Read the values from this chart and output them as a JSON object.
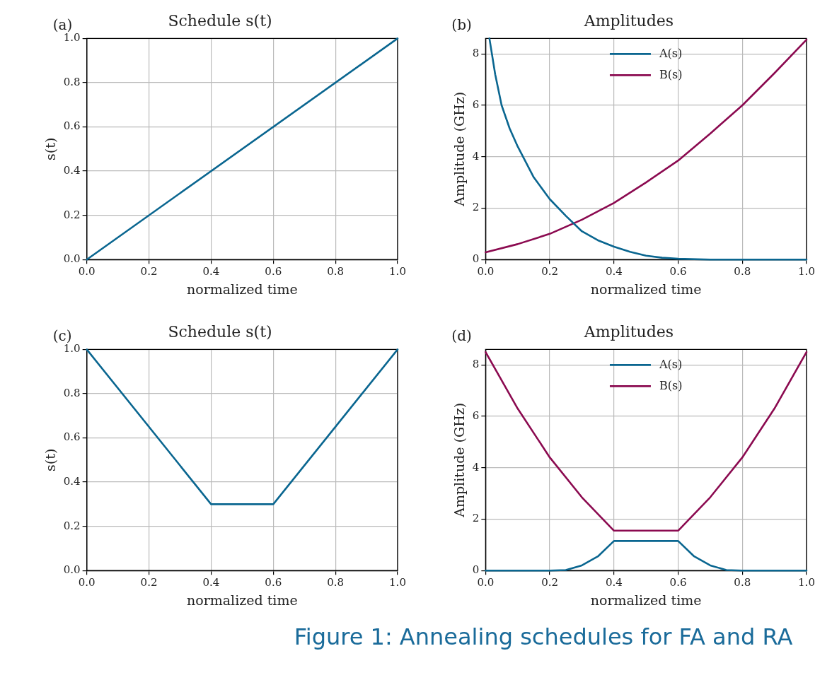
{
  "chart_data": [
    {
      "type": "line",
      "title": "Schedule s(t)",
      "xlabel": "normalized time",
      "ylabel": "s(t)",
      "annotations": [
        "(a)"
      ],
      "xlim": [
        0,
        1
      ],
      "ylim": [
        0,
        1
      ],
      "xticks": [
        {
          "value": 0,
          "label": "0.0"
        },
        {
          "value": 0.2,
          "label": "0.2"
        },
        {
          "value": 0.4,
          "label": "0.4"
        },
        {
          "value": 0.6,
          "label": "0.6"
        },
        {
          "value": 0.8,
          "label": "0.8"
        },
        {
          "value": 1,
          "label": "1.0"
        }
      ],
      "yticks": [
        {
          "value": 0,
          "label": "0.0"
        },
        {
          "value": 0.2,
          "label": "0.2"
        },
        {
          "value": 0.4,
          "label": "0.4"
        },
        {
          "value": 0.6,
          "label": "0.6"
        },
        {
          "value": 0.8,
          "label": "0.8"
        },
        {
          "value": 1,
          "label": "1.0"
        }
      ],
      "grid": true,
      "legend": false,
      "series": [
        {
          "color": "#0a6690",
          "x": [
            0,
            1
          ],
          "values": [
            0,
            1
          ]
        }
      ]
    },
    {
      "type": "line",
      "title": "Amplitudes",
      "xlabel": "normalized time",
      "ylabel": "Amplitude (GHz)",
      "annotations": [
        "(b)"
      ],
      "xlim": [
        0,
        1
      ],
      "ylim": [
        0,
        8.6
      ],
      "xticks": [
        {
          "value": 0,
          "label": "0.0"
        },
        {
          "value": 0.2,
          "label": "0.2"
        },
        {
          "value": 0.4,
          "label": "0.4"
        },
        {
          "value": 0.6,
          "label": "0.6"
        },
        {
          "value": 0.8,
          "label": "0.8"
        },
        {
          "value": 1,
          "label": "1.0"
        }
      ],
      "yticks": [
        0,
        2,
        4,
        6,
        8
      ],
      "grid": true,
      "legend": "top",
      "series": [
        {
          "name": "A(s)",
          "color": "#0a6690",
          "x": [
            0.012,
            0.03,
            0.05,
            0.075,
            0.1,
            0.15,
            0.2,
            0.25,
            0.3,
            0.35,
            0.4,
            0.45,
            0.5,
            0.55,
            0.6,
            0.7,
            0.8,
            0.9,
            1.0
          ],
          "values": [
            8.6,
            7.2,
            6.0,
            5.1,
            4.4,
            3.2,
            2.35,
            1.7,
            1.1,
            0.75,
            0.5,
            0.3,
            0.15,
            0.07,
            0.03,
            0,
            0,
            0,
            0
          ]
        },
        {
          "name": "B(s)",
          "color": "#8b0a50",
          "x": [
            0,
            0.1,
            0.2,
            0.3,
            0.4,
            0.5,
            0.6,
            0.7,
            0.8,
            0.9,
            1.0
          ],
          "values": [
            0.28,
            0.6,
            1.0,
            1.55,
            2.2,
            3.0,
            3.85,
            4.9,
            6.0,
            7.25,
            8.55
          ]
        }
      ]
    },
    {
      "type": "line",
      "title": "Schedule s(t)",
      "xlabel": "normalized time",
      "ylabel": "s(t)",
      "annotations": [
        "(c)"
      ],
      "xlim": [
        0,
        1
      ],
      "ylim": [
        0,
        1
      ],
      "xticks": [
        {
          "value": 0,
          "label": "0.0"
        },
        {
          "value": 0.2,
          "label": "0.2"
        },
        {
          "value": 0.4,
          "label": "0.4"
        },
        {
          "value": 0.6,
          "label": "0.6"
        },
        {
          "value": 0.8,
          "label": "0.8"
        },
        {
          "value": 1,
          "label": "1.0"
        }
      ],
      "yticks": [
        {
          "value": 0,
          "label": "0.0"
        },
        {
          "value": 0.2,
          "label": "0.2"
        },
        {
          "value": 0.4,
          "label": "0.4"
        },
        {
          "value": 0.6,
          "label": "0.6"
        },
        {
          "value": 0.8,
          "label": "0.8"
        },
        {
          "value": 1,
          "label": "1.0"
        }
      ],
      "grid": true,
      "legend": false,
      "series": [
        {
          "color": "#0a6690",
          "x": [
            0,
            0.4,
            0.6,
            1
          ],
          "values": [
            1,
            0.3,
            0.3,
            1
          ]
        }
      ]
    },
    {
      "type": "line",
      "title": "Amplitudes",
      "xlabel": "normalized time",
      "ylabel": "Amplitude (GHz)",
      "annotations": [
        "(d)",
        "Figure 1: Annealing schedules for FA and RA"
      ],
      "xlim": [
        0,
        1
      ],
      "ylim": [
        0,
        8.6
      ],
      "xticks": [
        {
          "value": 0,
          "label": "0.0"
        },
        {
          "value": 0.2,
          "label": "0.2"
        },
        {
          "value": 0.4,
          "label": "0.4"
        },
        {
          "value": 0.6,
          "label": "0.6"
        },
        {
          "value": 0.8,
          "label": "0.8"
        },
        {
          "value": 1,
          "label": "1.0"
        }
      ],
      "yticks": [
        0,
        2,
        4,
        6,
        8
      ],
      "grid": true,
      "legend": "top",
      "series": [
        {
          "name": "A(s)",
          "color": "#0a6690",
          "x": [
            0,
            0.2,
            0.25,
            0.3,
            0.35,
            0.4,
            0.6,
            0.65,
            0.7,
            0.75,
            0.8,
            1.0
          ],
          "values": [
            0,
            0,
            0.02,
            0.2,
            0.55,
            1.15,
            1.15,
            0.55,
            0.2,
            0.02,
            0,
            0
          ]
        },
        {
          "name": "B(s)",
          "color": "#8b0a50",
          "x": [
            0,
            0.1,
            0.2,
            0.3,
            0.4,
            0.6,
            0.7,
            0.8,
            0.9,
            1.0
          ],
          "values": [
            8.5,
            6.3,
            4.4,
            2.85,
            1.55,
            1.55,
            2.85,
            4.4,
            6.3,
            8.5
          ]
        }
      ]
    }
  ]
}
